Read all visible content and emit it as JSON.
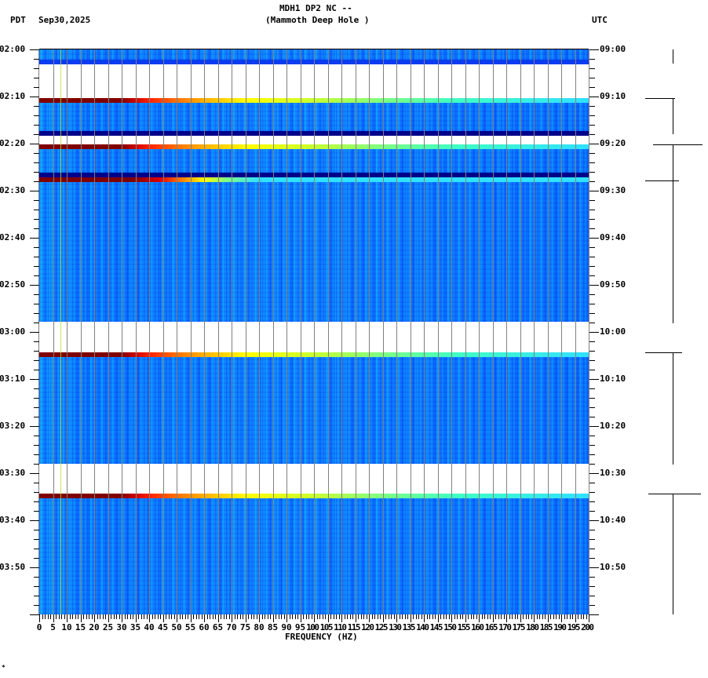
{
  "header": {
    "station_line": "MDH1 DP2 NC --",
    "location_line": "(Mammoth Deep Hole )",
    "left_timezone": "PDT",
    "date": "Sep30,2025",
    "right_timezone": "UTC"
  },
  "axes": {
    "xlabel": "FREQUENCY (HZ)",
    "x_ticks": [
      "0",
      "5",
      "10",
      "15",
      "20",
      "25",
      "30",
      "35",
      "40",
      "45",
      "50",
      "55",
      "60",
      "65",
      "70",
      "75",
      "80",
      "85",
      "90",
      "95",
      "100",
      "105",
      "110",
      "115",
      "120",
      "125",
      "130",
      "135",
      "140",
      "145",
      "150",
      "155",
      "160",
      "165",
      "170",
      "175",
      "180",
      "185",
      "190",
      "195",
      "200"
    ],
    "left_time_ticks": [
      "02:00",
      "02:10",
      "02:20",
      "02:30",
      "02:40",
      "02:50",
      "03:00",
      "03:10",
      "03:20",
      "03:30",
      "03:40",
      "03:50"
    ],
    "right_time_ticks": [
      "09:00",
      "09:10",
      "09:20",
      "09:30",
      "09:40",
      "09:50",
      "10:00",
      "10:10",
      "10:20",
      "10:30",
      "10:40",
      "10:50"
    ]
  },
  "footer": {
    "mark": "*"
  },
  "chart_data": {
    "type": "heatmap",
    "title": "MDH1 DP2 NC -- (Mammoth Deep Hole )",
    "subtitle": "Sep30,2025",
    "xlabel": "FREQUENCY (HZ)",
    "ylabel_left": "PDT",
    "ylabel_right": "UTC",
    "xlim": [
      0,
      200
    ],
    "x_tick_step": 5,
    "ylim_pdt": [
      "02:00",
      "04:00"
    ],
    "ylim_utc": [
      "09:00",
      "11:00"
    ],
    "grid": "vertical lines every 5 Hz",
    "colormap": "jet (dark blue low to dark red high)",
    "segments": [
      {
        "type": "data",
        "start_pdt": "02:00",
        "end_pdt": "02:02"
      },
      {
        "type": "low-level",
        "start_pdt": "02:02",
        "end_pdt": "02:03"
      },
      {
        "type": "gap",
        "start_pdt": "02:03",
        "end_pdt": "02:10"
      },
      {
        "type": "onset-spike",
        "start_pdt": "02:10",
        "end_pdt": "02:11"
      },
      {
        "type": "data",
        "start_pdt": "02:11",
        "end_pdt": "02:17"
      },
      {
        "type": "low-level",
        "start_pdt": "02:17",
        "end_pdt": "02:18"
      },
      {
        "type": "gap",
        "start_pdt": "02:18",
        "end_pdt": "02:20"
      },
      {
        "type": "onset-spike",
        "start_pdt": "02:20",
        "end_pdt": "02:21"
      },
      {
        "type": "data",
        "start_pdt": "02:21",
        "end_pdt": "02:26"
      },
      {
        "type": "low-level",
        "start_pdt": "02:26",
        "end_pdt": "02:27"
      },
      {
        "type": "onset-spike",
        "start_pdt": "02:27",
        "end_pdt": "02:28"
      },
      {
        "type": "data",
        "start_pdt": "02:28",
        "end_pdt": "02:58"
      },
      {
        "type": "gap",
        "start_pdt": "02:58",
        "end_pdt": "03:05"
      },
      {
        "type": "onset-spike",
        "start_pdt": "03:05",
        "end_pdt": "03:06"
      },
      {
        "type": "data",
        "start_pdt": "03:06",
        "end_pdt": "03:28"
      },
      {
        "type": "gap",
        "start_pdt": "03:28",
        "end_pdt": "03:35"
      },
      {
        "type": "onset-spike",
        "start_pdt": "03:35",
        "end_pdt": "03:36"
      },
      {
        "type": "data",
        "start_pdt": "03:36",
        "end_pdt": "03:60"
      }
    ],
    "persistent_line_hz": 8,
    "dominant_level": "background blue/cyan noise across 0-200 Hz"
  },
  "colors": {
    "background_noise": "#1a8cff",
    "low_level": "#00008b",
    "onset_low_freq": "#800000",
    "onset_mid": "#ffff00",
    "onset_high": "#30e0ff",
    "grid": "#808080"
  }
}
